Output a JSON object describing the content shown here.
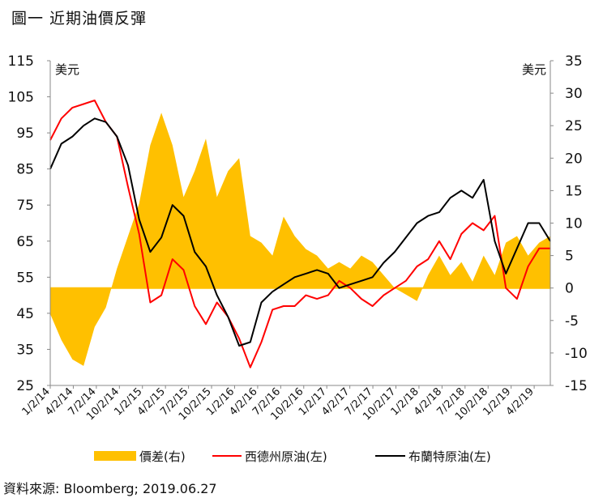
{
  "figure": {
    "title": "圖一  近期油價反彈",
    "source": "資料來源: Bloomberg; 2019.06.27"
  },
  "chart_data": {
    "type": "line",
    "left_axis": {
      "unit": "美元",
      "ticks": [
        25,
        35,
        45,
        55,
        65,
        75,
        85,
        95,
        105,
        115
      ],
      "ylim": [
        25,
        115
      ]
    },
    "right_axis": {
      "unit": "美元",
      "ticks": [
        -15,
        -10,
        -5,
        0,
        5,
        10,
        15,
        20,
        25,
        30,
        35
      ],
      "ylim": [
        -15,
        35
      ]
    },
    "x_tick_labels": [
      "1/2/14",
      "4/2/14",
      "7/2/14",
      "10/2/14",
      "1/2/15",
      "4/2/15",
      "7/2/15",
      "10/2/15",
      "1/2/16",
      "4/2/16",
      "7/2/16",
      "10/2/16",
      "1/2/17",
      "4/2/17",
      "7/2/17",
      "10/2/17",
      "1/2/18",
      "4/2/18",
      "7/2/18",
      "10/2/18",
      "1/2/19",
      "4/2/19"
    ],
    "x": [
      0,
      0.5,
      1,
      1.5,
      2,
      2.5,
      3,
      3.5,
      4,
      4.5,
      5,
      5.5,
      6,
      6.5,
      7,
      7.5,
      8,
      8.5,
      9,
      9.5,
      10,
      10.5,
      11,
      11.5,
      12,
      12.5,
      13,
      13.5,
      14,
      14.5,
      15,
      15.5,
      16,
      16.5,
      17,
      17.5,
      18,
      18.5,
      19,
      19.5,
      20,
      20.5,
      21,
      21.5,
      22,
      22.5
    ],
    "series": [
      {
        "name": "價差(右)",
        "axis": "right",
        "style": "area",
        "color": "#FFC000",
        "values": [
          -4,
          -8,
          -11,
          -12,
          -6,
          -3,
          3,
          8,
          13,
          22,
          27,
          22,
          14,
          18,
          23,
          14,
          18,
          20,
          8,
          7,
          5,
          11,
          8,
          6,
          5,
          3,
          4,
          3,
          5,
          4,
          2,
          0,
          -1,
          -2,
          2,
          5,
          2,
          4,
          1,
          5,
          2,
          7,
          8,
          5,
          7,
          8
        ]
      },
      {
        "name": "西德州原油(左)",
        "axis": "left",
        "style": "line",
        "color": "#FF0000",
        "values": [
          93,
          99,
          102,
          103,
          104,
          98,
          94,
          80,
          67,
          48,
          50,
          60,
          57,
          47,
          42,
          48,
          44,
          38,
          30,
          37,
          46,
          47,
          47,
          50,
          49,
          50,
          54,
          52,
          49,
          47,
          50,
          52,
          54,
          58,
          60,
          65,
          60,
          67,
          70,
          68,
          72,
          52,
          49,
          58,
          63,
          63
        ]
      },
      {
        "name": "布蘭特原油(左)",
        "axis": "left",
        "style": "line",
        "color": "#000000",
        "values": [
          85,
          92,
          94,
          97,
          99,
          98,
          94,
          86,
          71,
          62,
          66,
          75,
          72,
          62,
          58,
          50,
          44,
          36,
          37,
          48,
          51,
          53,
          55,
          56,
          57,
          56,
          52,
          53,
          54,
          55,
          59,
          62,
          66,
          70,
          72,
          73,
          77,
          79,
          77,
          82,
          65,
          56,
          63,
          70,
          70,
          65
        ]
      }
    ]
  }
}
